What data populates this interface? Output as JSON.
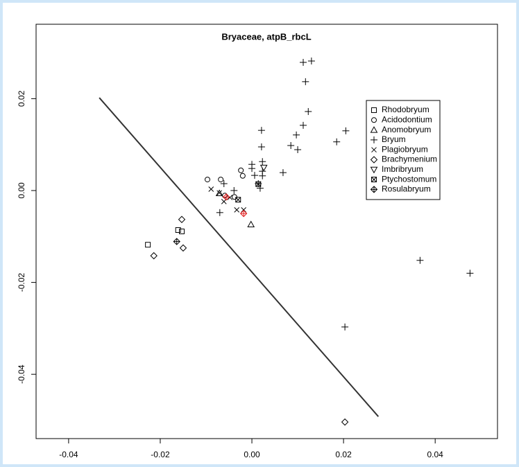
{
  "chart_data": {
    "type": "scatter",
    "title": "Bryaceae, atpB_rbcL",
    "xlim": [
      -0.0471,
      0.0536
    ],
    "ylim": [
      -0.054,
      0.0362
    ],
    "xticks": [
      -0.04,
      -0.02,
      {
        "value": 0,
        "label": "0.00"
      },
      0.02,
      0.04
    ],
    "yticks": [
      -0.04,
      -0.02,
      {
        "value": 0,
        "label": "0.00"
      },
      0.02
    ],
    "line": {
      "x": [
        -0.0333,
        0.0276
      ],
      "y": [
        0.0202,
        -0.0492
      ],
      "color": "#333333"
    },
    "legend": "topright",
    "series": [
      {
        "name": "Rhodobryum",
        "marker": "square",
        "color": "#000000",
        "x": [
          -0.0227,
          -0.0161,
          -0.0153
        ],
        "y": [
          -0.0118,
          -0.0086,
          -0.0089
        ]
      },
      {
        "name": "Acidodontium",
        "marker": "circle",
        "color": "#000000",
        "x": [
          -0.0097,
          -0.0068,
          -0.0024,
          -0.002,
          -0.0059,
          -0.0038
        ],
        "y": [
          0.0024,
          0.0024,
          0.0044,
          0.0032,
          -0.0011,
          -0.0014
        ]
      },
      {
        "name": "Anomobryum",
        "marker": "triangle",
        "color": "#000000",
        "x": [
          -0.0002,
          -0.0071
        ],
        "y": [
          -0.0074,
          -0.0006
        ]
      },
      {
        "name": "Bryum",
        "marker": "plus",
        "color": "#000000",
        "x": [
          0.0112,
          0.013,
          0.0117,
          0.0123,
          0.0112,
          0.0205,
          0.0185,
          0.0097,
          0.0085,
          0.01,
          0.0021,
          0.0021,
          0.0023,
          0.0,
          0.0,
          0.0006,
          0.0023,
          0.0023,
          0.0014,
          0.0018,
          0.0068,
          -0.0061,
          -0.007,
          -0.0039,
          0.0367,
          0.0476,
          0.0203
        ],
        "y": [
          0.0279,
          0.0282,
          0.0237,
          0.0172,
          0.0142,
          0.013,
          0.0106,
          0.0121,
          0.0098,
          0.0089,
          0.0131,
          0.0095,
          0.0063,
          0.0057,
          0.0048,
          0.0033,
          0.0042,
          0.0032,
          0.0015,
          0.0005,
          0.0039,
          0.0015,
          -0.0048,
          0.0,
          -0.0152,
          -0.018,
          -0.0297
        ]
      },
      {
        "name": "Plagiobryum",
        "marker": "cross",
        "color": "#000000",
        "x": [
          -0.0089,
          -0.0071,
          -0.0061,
          -0.0033,
          -0.0018,
          -0.0048
        ],
        "y": [
          0.0003,
          -0.0005,
          -0.0024,
          -0.0042,
          -0.0042,
          -0.0015
        ]
      },
      {
        "name": "Brachymenium",
        "marker": "diamond",
        "color": "#000000",
        "x": [
          -0.0153,
          -0.0214,
          -0.015,
          0.0203
        ],
        "y": [
          -0.0063,
          -0.0142,
          -0.0125,
          -0.0504
        ]
      },
      {
        "name": "Imbribryum",
        "marker": "down-triangle",
        "color": "#000000",
        "x": [
          0.0026
        ],
        "y": [
          0.005
        ]
      },
      {
        "name": "Ptychostomum",
        "marker": "boxed-cross",
        "color": "#000000",
        "x": [
          -0.003,
          0.0014
        ],
        "y": [
          -0.002,
          0.0014
        ]
      },
      {
        "name": "Rosulabryum",
        "marker": "diamond-plus",
        "color": "#000000",
        "x": [
          -0.0164,
          -0.0056,
          -0.0018
        ],
        "y": [
          -0.0111,
          -0.0014,
          -0.005
        ],
        "point_colors": [
          "#000000",
          "#e02020",
          "#e02020"
        ]
      }
    ]
  }
}
